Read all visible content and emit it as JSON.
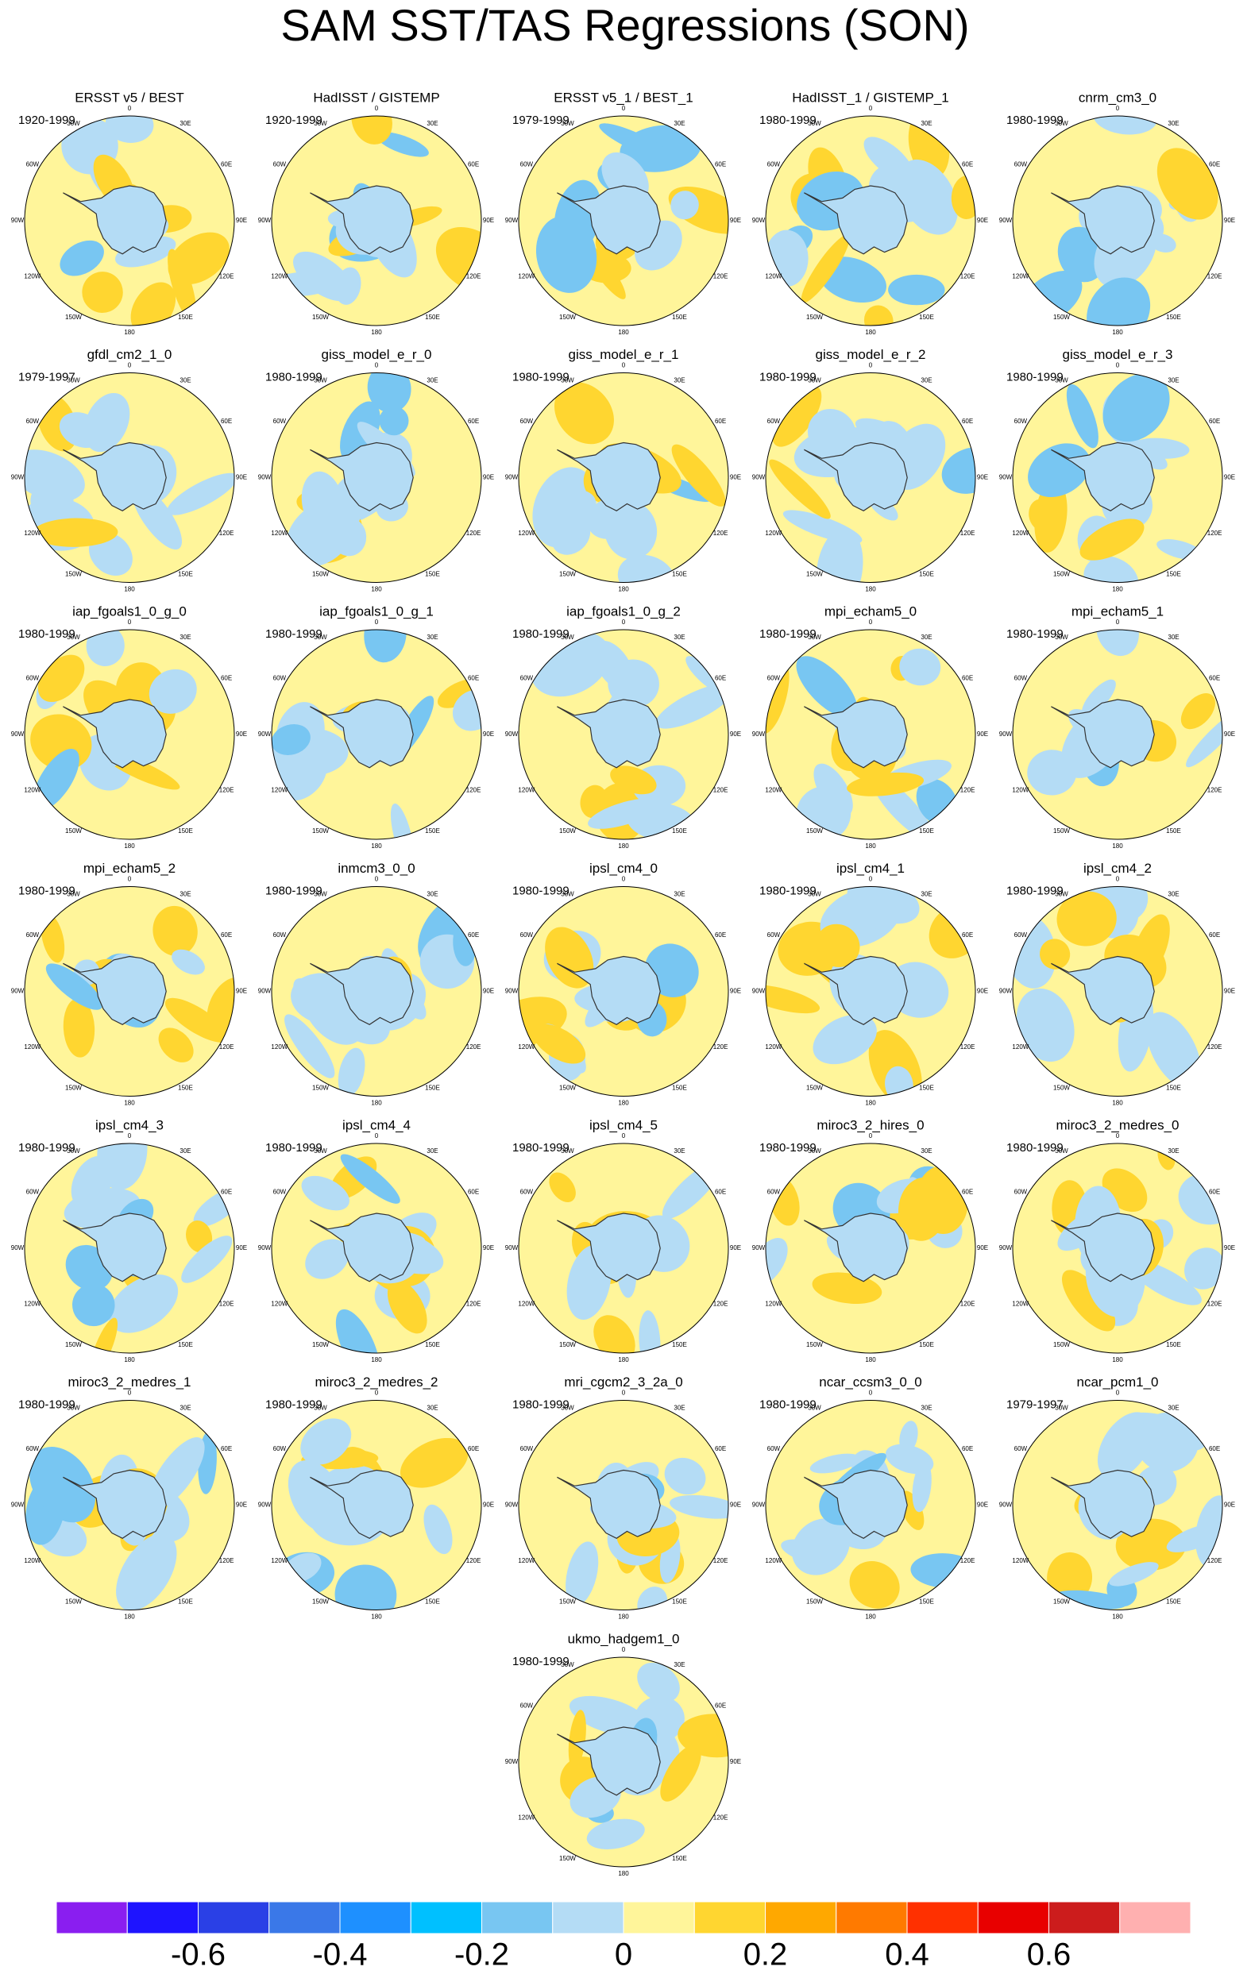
{
  "title": "SAM SST/TAS Regressions (SON)",
  "lon_labels": [
    "0",
    "30E",
    "60E",
    "90E",
    "120E",
    "150E",
    "180",
    "150W",
    "120W",
    "90W",
    "60W",
    "30W"
  ],
  "panels": [
    {
      "title": "ERSST v5 / BEST",
      "period": "1920-1999"
    },
    {
      "title": "HadISST / GISTEMP",
      "period": "1920-1999"
    },
    {
      "title": "ERSST v5_1 / BEST_1",
      "period": "1979-1999"
    },
    {
      "title": "HadISST_1 / GISTEMP_1",
      "period": "1980-1999"
    },
    {
      "title": "cnrm_cm3_0",
      "period": "1980-1999"
    },
    {
      "title": "gfdl_cm2_1_0",
      "period": "1979-1997"
    },
    {
      "title": "giss_model_e_r_0",
      "period": "1980-1999"
    },
    {
      "title": "giss_model_e_r_1",
      "period": "1980-1999"
    },
    {
      "title": "giss_model_e_r_2",
      "period": "1980-1999"
    },
    {
      "title": "giss_model_e_r_3",
      "period": "1980-1999"
    },
    {
      "title": "iap_fgoals1_0_g_0",
      "period": "1980-1999"
    },
    {
      "title": "iap_fgoals1_0_g_1",
      "period": "1980-1999"
    },
    {
      "title": "iap_fgoals1_0_g_2",
      "period": "1980-1999"
    },
    {
      "title": "mpi_echam5_0",
      "period": "1980-1999"
    },
    {
      "title": "mpi_echam5_1",
      "period": "1980-1999"
    },
    {
      "title": "mpi_echam5_2",
      "period": "1980-1999"
    },
    {
      "title": "inmcm3_0_0",
      "period": "1980-1999"
    },
    {
      "title": "ipsl_cm4_0",
      "period": "1980-1999"
    },
    {
      "title": "ipsl_cm4_1",
      "period": "1980-1999"
    },
    {
      "title": "ipsl_cm4_2",
      "period": "1980-1999"
    },
    {
      "title": "ipsl_cm4_3",
      "period": "1980-1999"
    },
    {
      "title": "ipsl_cm4_4",
      "period": "1980-1999"
    },
    {
      "title": "ipsl_cm4_5",
      "period": "1980-1999"
    },
    {
      "title": "miroc3_2_hires_0",
      "period": "1980-1999"
    },
    {
      "title": "miroc3_2_medres_0",
      "period": "1980-1999"
    },
    {
      "title": "miroc3_2_medres_1",
      "period": "1980-1999"
    },
    {
      "title": "miroc3_2_medres_2",
      "period": "1980-1999"
    },
    {
      "title": "mri_cgcm2_3_2a_0",
      "period": "1980-1999"
    },
    {
      "title": "ncar_ccsm3_0_0",
      "period": "1980-1999"
    },
    {
      "title": "ncar_pcm1_0",
      "period": "1979-1997"
    },
    {
      "title": "ukmo_hadgem1_0",
      "period": "1980-1999"
    }
  ],
  "colorbar": {
    "colors": [
      "#8a1ef0",
      "#1e14ff",
      "#2a40e6",
      "#3a78e8",
      "#1e90ff",
      "#00c0ff",
      "#78c6f2",
      "#b4dcf5",
      "#fff59a",
      "#ffd630",
      "#ffa800",
      "#ff7a00",
      "#ff3000",
      "#e80000",
      "#cc1c1c",
      "#ffb0b0"
    ],
    "clim": [
      -0.8,
      0.8
    ],
    "ticks": [
      -0.6,
      -0.4,
      -0.2,
      0,
      0.2,
      0.4,
      0.6
    ]
  }
}
